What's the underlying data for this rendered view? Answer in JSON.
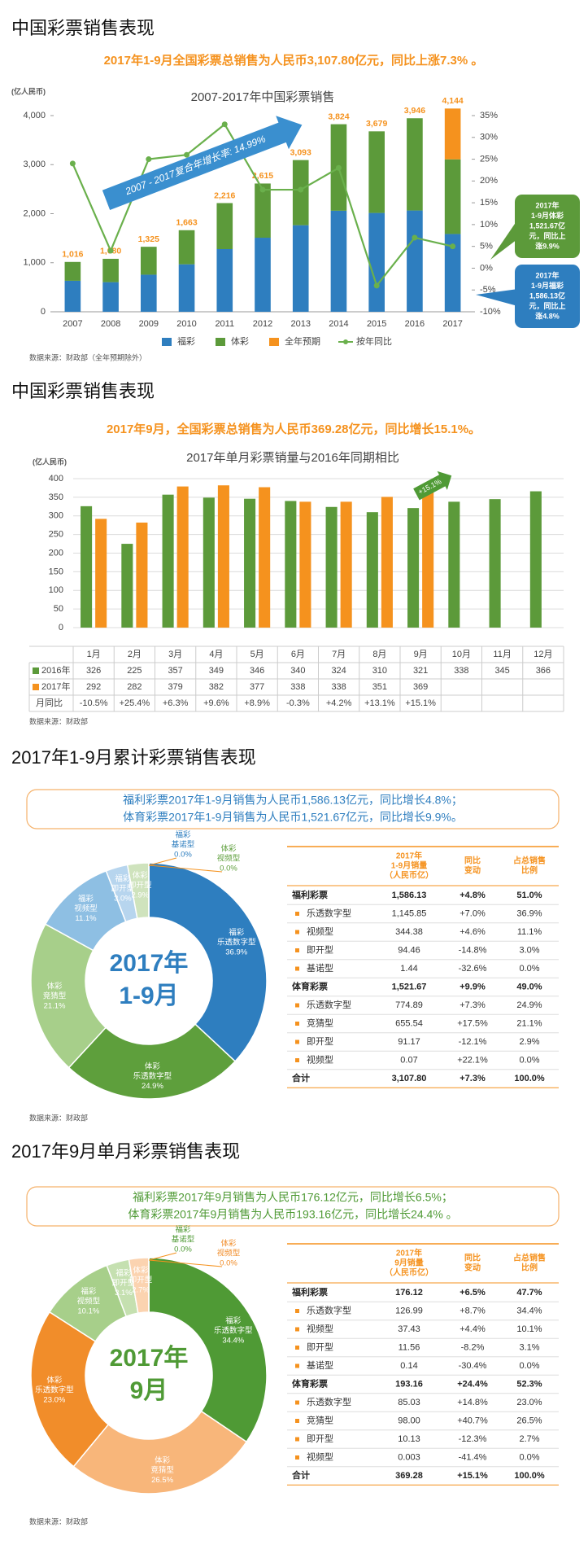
{
  "headings": [
    "中国彩票销售表现",
    "中国彩票销售表现",
    "2017年1-9月累计彩票销售表现",
    "2017年9月单月彩票销售表现"
  ],
  "summaries": [
    [
      "2017年1-9月全国彩票总销售为人民币3,107.80亿元，同比上涨7.3% 。"
    ],
    [
      "2017年9月，全国彩票总销售为人民币369.28亿元，同比增长15.1%。"
    ],
    [
      "福利彩票2017年1-9月销售为人民币1,586.13亿元，同比增长4.8%；",
      "体育彩票2017年1-9月销售为人民币1,521.67亿元，同比增长9.9%。"
    ],
    [
      "福利彩票2017年9月销售为人民币176.12亿元，同比增长6.5%；",
      "体育彩票2017年9月销售为人民币193.16亿元，同比增长24.4% 。"
    ]
  ],
  "chart_data": [
    {
      "type": "bar",
      "title": "2007-2017年中国彩票销售",
      "y_label": "(亿人民币)",
      "categories": [
        "2007",
        "2008",
        "2009",
        "2010",
        "2011",
        "2012",
        "2013",
        "2014",
        "2015",
        "2016",
        "2017"
      ],
      "series": [
        {
          "name": "福彩",
          "color": "#2e7ebf",
          "values": [
            632,
            604,
            756,
            968,
            1278,
            1510,
            1765,
            2060,
            2015,
            2065,
            1586
          ]
        },
        {
          "name": "体彩",
          "color": "#5c9a3a",
          "values": [
            384,
            476,
            569,
            695,
            938,
            1105,
            1328,
            1764,
            1664,
            1881,
            1522
          ]
        },
        {
          "name": "全年预期",
          "color": "#f5921e",
          "values": [
            null,
            null,
            null,
            null,
            null,
            null,
            null,
            null,
            null,
            null,
            1036
          ]
        },
        {
          "name": "按年同比",
          "type": "line",
          "axis": "y2",
          "color": "#6ab04c",
          "values": [
            24,
            4,
            25,
            26,
            33,
            18,
            18,
            23,
            -4,
            7,
            5
          ]
        }
      ],
      "totals": {
        "values": [
          1016,
          1080,
          1325,
          1663,
          2216,
          2615,
          3093,
          3824,
          3679,
          3946,
          4144
        ],
        "value_labels": [
          "1,016",
          "1,080",
          "1,325",
          "1,663",
          "2,216",
          "2,615",
          "3,093",
          "3,824",
          "3,679",
          "3,946",
          "4,144"
        ]
      },
      "ylim": [
        0,
        4000
      ],
      "yticks": [
        0,
        {
          "value": 1000,
          "label": "1,000"
        },
        {
          "value": 2000,
          "label": "2,000"
        },
        {
          "value": 3000,
          "label": "3,000"
        },
        {
          "value": 4000,
          "label": "4,000"
        }
      ],
      "y2lim": [
        -10,
        35
      ],
      "y2ticks": [
        {
          "value": -10,
          "label": "-10%"
        },
        {
          "value": -5,
          "label": "-5%"
        },
        {
          "value": 0,
          "label": "0%"
        },
        {
          "value": 5,
          "label": "5%"
        },
        {
          "value": 10,
          "label": "10%"
        },
        {
          "value": 15,
          "label": "15%"
        },
        {
          "value": 20,
          "label": "20%"
        },
        {
          "value": 25,
          "label": "25%"
        },
        {
          "value": 30,
          "label": "30%"
        },
        {
          "value": 35,
          "label": "35%"
        }
      ],
      "annotation": "2007 - 2017复合年增长率: 14.99%",
      "callouts": [
        {
          "color": "#5c9a3a",
          "lines": [
            "2017年",
            "1-9月体彩",
            "1,521.67亿",
            "元，同比上",
            "涨9.9%"
          ]
        },
        {
          "color": "#2e7ebf",
          "lines": [
            "2017年",
            "1-9月福彩",
            "1,586.13亿",
            "元，同比上",
            "涨4.8%"
          ]
        }
      ],
      "source": "数据来源：财政部（全年预期除外）"
    },
    {
      "type": "bar",
      "title": "2017年单月彩票销量与2016年同期相比",
      "y_label": "(亿人民币)",
      "categories": [
        "1月",
        "2月",
        "3月",
        "4月",
        "5月",
        "6月",
        "7月",
        "8月",
        "9月",
        "10月",
        "11月",
        "12月"
      ],
      "series": [
        {
          "name": "2016年",
          "color": "#5c9a3a",
          "values": [
            326,
            225,
            357,
            349,
            346,
            340,
            324,
            310,
            321,
            338,
            345,
            366
          ]
        },
        {
          "name": "2017年",
          "color": "#f5921e",
          "values": [
            292,
            282,
            379,
            382,
            377,
            338,
            338,
            351,
            369,
            null,
            null,
            null
          ]
        }
      ],
      "yoy": {
        "name": "月同比",
        "values": [
          -10.5,
          25.4,
          6.3,
          9.6,
          8.9,
          -0.3,
          4.2,
          13.1,
          15.1,
          null,
          null,
          null
        ],
        "value_labels": [
          "-10.5%",
          "+25.4%",
          "+6.3%",
          "+9.6%",
          "+8.9%",
          "-0.3%",
          "+4.2%",
          "+13.1%",
          "+15.1%",
          null,
          null,
          null
        ]
      },
      "ylim": [
        0,
        400
      ],
      "yticks": [
        0,
        50,
        100,
        150,
        200,
        250,
        300,
        350,
        400
      ],
      "grid": true,
      "annotation": "+15.1%",
      "source": "数据来源：财政部"
    },
    {
      "type": "pie",
      "donut": true,
      "center_lines": [
        "2017年",
        "1-9月"
      ],
      "center_color": "#2e7ebf",
      "labels": [
        [
          "福彩",
          "乐透数字型"
        ],
        [
          "体彩",
          "乐透数字型"
        ],
        [
          "体彩",
          "竞猜型"
        ],
        [
          "福彩",
          "视频型"
        ],
        [
          "福彩",
          "即开型"
        ],
        [
          "体彩",
          "即开型"
        ],
        [
          "福彩",
          "基诺型"
        ],
        [
          "体彩",
          "视频型"
        ]
      ],
      "values": [
        36.9,
        24.9,
        21.1,
        11.1,
        3.0,
        2.9,
        0.0,
        0.0
      ],
      "value_labels": [
        "36.9%",
        "24.9%",
        "21.1%",
        "11.1%",
        "3.0%",
        "2.9%",
        "0.0%",
        "0.0%"
      ],
      "colors": [
        "#2e7ebf",
        "#5e9f3c",
        "#a7cf8a",
        "#8ebfe3",
        "#b7d5ee",
        "#cfe3bd",
        "#2e7ebf",
        "#5e9f3c"
      ],
      "source": "数据来源：财政部"
    },
    {
      "type": "pie",
      "donut": true,
      "center_lines": [
        "2017年",
        "9月"
      ],
      "center_color": "#4f9a35",
      "labels": [
        [
          "福彩",
          "乐透数字型"
        ],
        [
          "体彩",
          "竞猜型"
        ],
        [
          "体彩",
          "乐透数字型"
        ],
        [
          "福彩",
          "视频型"
        ],
        [
          "福彩",
          "即开型"
        ],
        [
          "体彩",
          "即开型"
        ],
        [
          "福彩",
          "基诺型"
        ],
        [
          "体彩",
          "视频型"
        ]
      ],
      "values": [
        34.4,
        26.5,
        23.0,
        10.1,
        3.1,
        2.7,
        0.0,
        0.0
      ],
      "value_labels": [
        "34.4%",
        "26.5%",
        "23.0%",
        "10.1%",
        "3.1%",
        "2.7%",
        "0.0%",
        "0.0%"
      ],
      "colors": [
        "#4f9a35",
        "#f8b67a",
        "#f18d2a",
        "#a7cf8a",
        "#c5e0b0",
        "#fbd3b0",
        "#4f9a35",
        "#f18d2a"
      ],
      "source": "数据来源：财政部"
    }
  ],
  "tables": [
    {
      "header": [
        [
          "2017年",
          "1-9月销量",
          "（人民币亿）"
        ],
        [
          "同比",
          "变动"
        ],
        [
          "占总销售",
          "比例"
        ]
      ],
      "rows": [
        [
          "福利彩票",
          "1,586.13",
          "+4.8%",
          "51.0%"
        ],
        [
          "乐透数字型",
          "1,145.85",
          "+7.0%",
          "36.9%"
        ],
        [
          "视频型",
          "344.38",
          "+4.6%",
          "11.1%"
        ],
        [
          "即开型",
          "94.46",
          "-14.8%",
          "3.0%"
        ],
        [
          "基诺型",
          "1.44",
          "-32.6%",
          "0.0%"
        ],
        [
          "体育彩票",
          "1,521.67",
          "+9.9%",
          "49.0%"
        ],
        [
          "乐透数字型",
          "774.89",
          "+7.3%",
          "24.9%"
        ],
        [
          "竞猜型",
          "655.54",
          "+17.5%",
          "21.1%"
        ],
        [
          "即开型",
          "91.17",
          "-12.1%",
          "2.9%"
        ],
        [
          "视频型",
          "0.07",
          "+22.1%",
          "0.0%"
        ],
        [
          "合计",
          "3,107.80",
          "+7.3%",
          "100.0%"
        ]
      ]
    },
    {
      "header": [
        [
          "2017年",
          "9月销量",
          "（人民币亿）"
        ],
        [
          "同比",
          "变动"
        ],
        [
          "占总销售",
          "比例"
        ]
      ],
      "rows": [
        [
          "福利彩票",
          "176.12",
          "+6.5%",
          "47.7%"
        ],
        [
          "乐透数字型",
          "126.99",
          "+8.7%",
          "34.4%"
        ],
        [
          "视频型",
          "37.43",
          "+4.4%",
          "10.1%"
        ],
        [
          "即开型",
          "11.56",
          "-8.2%",
          "3.1%"
        ],
        [
          "基诺型",
          "0.14",
          "-30.4%",
          "0.0%"
        ],
        [
          "体育彩票",
          "193.16",
          "+24.4%",
          "52.3%"
        ],
        [
          "乐透数字型",
          "85.03",
          "+14.8%",
          "23.0%"
        ],
        [
          "竞猜型",
          "98.00",
          "+40.7%",
          "26.5%"
        ],
        [
          "即开型",
          "10.13",
          "-12.3%",
          "2.7%"
        ],
        [
          "视频型",
          "0.003",
          "-41.4%",
          "0.0%"
        ],
        [
          "合计",
          "369.28",
          "+15.1%",
          "100.0%"
        ]
      ]
    }
  ]
}
